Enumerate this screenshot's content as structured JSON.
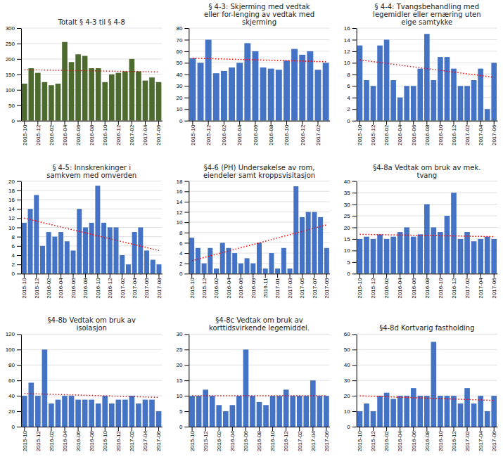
{
  "chart_data": [
    {
      "type": "bar",
      "title": "Totalt § 4-3 til § 4-8",
      "categories": [
        "2015-10",
        null,
        "2015-12",
        null,
        "2016-02",
        null,
        "2016-04",
        null,
        "2016-06",
        null,
        "2016-08",
        null,
        "2016-10",
        null,
        "2016-12",
        null,
        "2017-02",
        null,
        "2017-04",
        null,
        "2017-06"
      ],
      "values": [
        120,
        170,
        155,
        125,
        115,
        120,
        255,
        190,
        215,
        210,
        170,
        170,
        125,
        150,
        155,
        160,
        200,
        160,
        130,
        140,
        125
      ],
      "color": "#4d6b2e",
      "ylim": [
        0,
        300
      ],
      "yticks": [
        0,
        50,
        100,
        150,
        200,
        250,
        300
      ],
      "grid": true,
      "trend": {
        "values": [
          165,
          158
        ],
        "color": "#ff0000",
        "line_style": "dotted"
      }
    },
    {
      "type": "bar",
      "title": "§ 4-3: Skjerming med vedtak\neller for-lenging av vedtak med\nskjerming",
      "categories": [
        "2015-10",
        null,
        "2015-12",
        null,
        "2016-02",
        null,
        "2016-04",
        null,
        "2016-06",
        null,
        "2016-08",
        null,
        "2016-10",
        null,
        "2016-12",
        null,
        "2017-02",
        null
      ],
      "values": [
        54,
        50,
        70,
        41,
        43,
        46,
        50,
        67,
        60,
        46,
        45,
        44,
        52,
        62,
        57,
        60,
        44,
        50
      ],
      "color": "#4472c4",
      "ylim": [
        0,
        80
      ],
      "yticks": [
        0,
        10,
        20,
        30,
        40,
        50,
        60,
        70,
        80
      ],
      "grid": true,
      "trend": {
        "values": [
          54,
          51
        ],
        "color": "#ff0000",
        "line_style": "dotted"
      }
    },
    {
      "type": "bar",
      "title": "§ 4-4: Tvangsbehandling med\nlegemidler eller ernæring uten\neige samtykke",
      "categories": [
        "2015-10",
        null,
        "2015-12",
        null,
        "2016-02",
        null,
        "2016-04",
        null,
        "2016-06",
        null,
        "2016-08",
        null,
        "2016-10",
        null,
        "2016-12",
        null,
        "2017-02",
        null,
        "2017-04",
        null,
        "2017-06"
      ],
      "values": [
        13,
        7,
        6,
        13,
        14,
        7,
        4,
        6,
        6,
        9,
        15,
        7,
        11,
        11,
        9,
        6,
        6,
        7,
        9,
        2,
        10
      ],
      "color": "#4472c4",
      "ylim": [
        0,
        16
      ],
      "yticks": [
        0,
        2,
        4,
        6,
        8,
        10,
        12,
        14,
        16
      ],
      "grid": true,
      "trend": {
        "values": [
          10.5,
          7.5
        ],
        "color": "#ff0000",
        "line_style": "dotted"
      }
    },
    {
      "type": "bar",
      "title": "§ 4-5: Innskrenkinger i\nsamkvem med omverden",
      "categories": [
        "2015-10",
        null,
        "2015-12",
        null,
        "2016-02",
        null,
        "2016-04",
        null,
        "2016-06",
        null,
        "2016-08",
        null,
        "2016-10",
        null,
        "2016-12",
        null,
        "2017-02",
        null,
        "2017-04",
        null,
        "2017-06",
        null,
        "2017-08"
      ],
      "values": [
        11,
        14,
        17,
        6,
        9,
        8,
        9,
        7,
        5,
        14,
        10,
        11,
        19,
        11,
        10,
        10,
        4,
        2,
        9,
        10,
        5,
        3,
        2
      ],
      "color": "#4472c4",
      "ylim": [
        0,
        20
      ],
      "yticks": [
        0,
        2,
        4,
        6,
        8,
        10,
        12,
        14,
        16,
        18,
        20
      ],
      "grid": true,
      "trend": {
        "values": [
          12,
          5
        ],
        "color": "#ff0000",
        "line_style": "dotted"
      }
    },
    {
      "type": "bar",
      "title": "§4-6 (PH) Undersøkelse av rom,\neiendeler samt kroppsvisitasjon",
      "categories": [
        "2015-10",
        null,
        "2015-12",
        null,
        "2016-02",
        null,
        "2016-04",
        null,
        "2016-06",
        null,
        "2016-09",
        null,
        "2016-11",
        null,
        "2017-01",
        null,
        "2017-03",
        null,
        "2017-05",
        null,
        "2017-07",
        null,
        "2017-09"
      ],
      "values": [
        7,
        5,
        2,
        5,
        1,
        6,
        5,
        4,
        2,
        3,
        2,
        6,
        1,
        4,
        1,
        5,
        1,
        17,
        11,
        12,
        12,
        11,
        5
      ],
      "color": "#4472c4",
      "ylim": [
        0,
        18
      ],
      "yticks": [
        0,
        2,
        4,
        6,
        8,
        10,
        12,
        14,
        16,
        18
      ],
      "grid": true,
      "trend": {
        "values": [
          2.5,
          9.5
        ],
        "color": "#ff0000",
        "line_style": "dotted"
      }
    },
    {
      "type": "bar",
      "title": "§4-8a Vedtak om bruk av mek.\ntvang",
      "categories": [
        "2015-10",
        null,
        "2015-12",
        null,
        "2016-02",
        null,
        "2016-04",
        null,
        "2016-06",
        null,
        "2016-08",
        null,
        "2016-10",
        null,
        "2016-12",
        null,
        "2017-02",
        null,
        "2017-04",
        null,
        "2017-06"
      ],
      "values": [
        15,
        16,
        15,
        17,
        15,
        16,
        18,
        20,
        16,
        17,
        30,
        20,
        18,
        25,
        35,
        15,
        18,
        14,
        15,
        16,
        15
      ],
      "color": "#4472c4",
      "ylim": [
        0,
        40
      ],
      "yticks": [
        0,
        5,
        10,
        15,
        20,
        25,
        30,
        35,
        40
      ],
      "grid": true,
      "trend": {
        "values": [
          17,
          16
        ],
        "color": "#ff0000",
        "line_style": "dotted"
      }
    },
    {
      "type": "bar",
      "title": "§4-8b Vedtak om bruk av\nisolasjon",
      "categories": [
        "2015-10",
        null,
        "2015-12",
        null,
        "2016-02",
        null,
        "2016-04",
        null,
        "2016-06",
        null,
        "2016-08",
        null,
        "2016-10",
        null,
        "2016-12",
        null,
        "2017-02",
        null,
        "2017-04",
        null,
        "2017-06"
      ],
      "values": [
        40,
        57,
        40,
        100,
        30,
        35,
        40,
        40,
        35,
        35,
        35,
        30,
        40,
        30,
        35,
        35,
        40,
        30,
        35,
        35,
        20
      ],
      "color": "#4472c4",
      "ylim": [
        0,
        120
      ],
      "yticks": [
        0,
        20,
        40,
        60,
        80,
        100,
        120
      ],
      "grid": true,
      "trend": {
        "values": [
          43,
          38
        ],
        "color": "#ff0000",
        "line_style": "dotted"
      }
    },
    {
      "type": "bar",
      "title": "§4-8c Vedtak om bruk av\nkorttidsvirkende legemiddel.",
      "categories": [
        "2015-10",
        null,
        "2015-12",
        null,
        "2016-02",
        null,
        "2016-04",
        null,
        "2016-06",
        null,
        "2016-08",
        null,
        "2016-10",
        null,
        "2016-12",
        null,
        "2017-02",
        null,
        "2017-04",
        null,
        "2017-06"
      ],
      "values": [
        10,
        10,
        12,
        10,
        7,
        5,
        7,
        10,
        25,
        10,
        8,
        7,
        10,
        10,
        12,
        10,
        10,
        10,
        15,
        10,
        10
      ],
      "color": "#4472c4",
      "ylim": [
        0,
        30
      ],
      "yticks": [
        0,
        5,
        10,
        15,
        20,
        25,
        30
      ],
      "grid": true,
      "trend": {
        "values": [
          10,
          10
        ],
        "color": "#ff0000",
        "line_style": "dotted"
      }
    },
    {
      "type": "bar",
      "title": "§4-8d Kortvarig fastholding",
      "categories": [
        "2015-10",
        null,
        "2015-12",
        null,
        "2016-02",
        null,
        "2016-04",
        null,
        "2016-06",
        null,
        "2016-08",
        null,
        "2016-10",
        null,
        "2016-12",
        null,
        "2017-02",
        null,
        "2017-04",
        null,
        "2017-06"
      ],
      "values": [
        10,
        15,
        10,
        20,
        22,
        18,
        20,
        20,
        25,
        20,
        20,
        55,
        20,
        20,
        20,
        15,
        25,
        15,
        20,
        10,
        20
      ],
      "color": "#4472c4",
      "ylim": [
        0,
        60
      ],
      "yticks": [
        0,
        10,
        20,
        30,
        40,
        50,
        60
      ],
      "grid": true,
      "trend": {
        "values": [
          20,
          17
        ],
        "color": "#ff0000",
        "line_style": "dotted"
      }
    }
  ]
}
